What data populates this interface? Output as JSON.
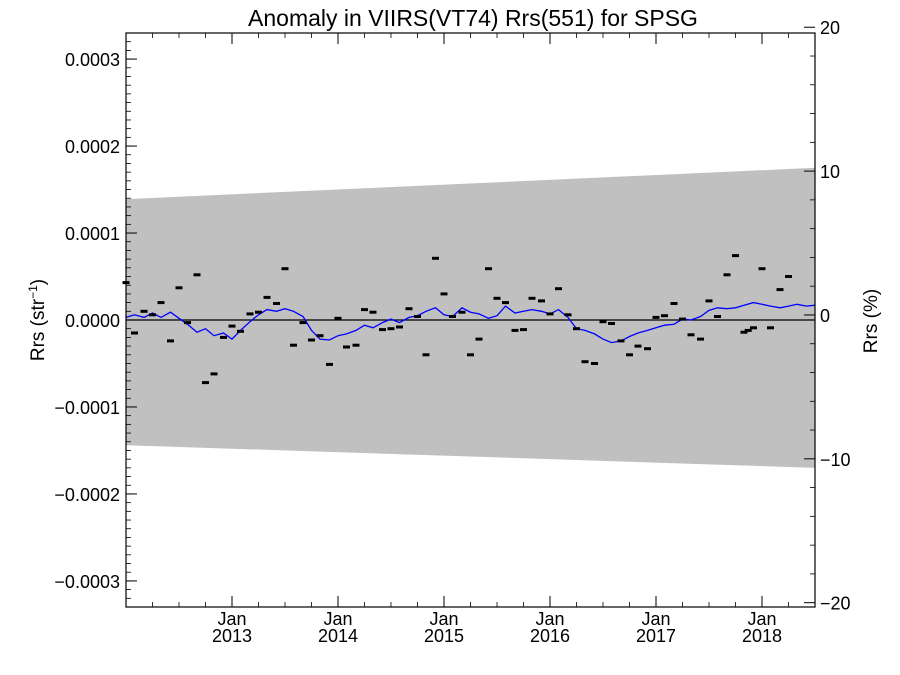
{
  "chart_data": {
    "type": "scatter",
    "title": "Anomaly in VIIRS(VT74) Rrs(551) for SPSG",
    "ylabel_left": "Rrs (str",
    "ylabel_left_sup": "−1",
    "ylabel_left_close": ")",
    "ylabel_right": "Rrs (%)",
    "xlim": [
      2012.0,
      2018.5
    ],
    "ylim_left": [
      -0.00033,
      0.00033
    ],
    "ylim_right": [
      -20.3,
      19.6
    ],
    "x_ticks": [
      {
        "x": 2013.0,
        "month": "Jan",
        "year": "2013"
      },
      {
        "x": 2014.0,
        "month": "Jan",
        "year": "2014"
      },
      {
        "x": 2015.0,
        "month": "Jan",
        "year": "2015"
      },
      {
        "x": 2016.0,
        "month": "Jan",
        "year": "2016"
      },
      {
        "x": 2017.0,
        "month": "Jan",
        "year": "2017"
      },
      {
        "x": 2018.0,
        "month": "Jan",
        "year": "2018"
      }
    ],
    "y_ticks_left": [
      {
        "value": 0.0003,
        "label": "0.0003"
      },
      {
        "value": 0.0002,
        "label": "0.0002"
      },
      {
        "value": 0.0001,
        "label": "0.0001"
      },
      {
        "value": 0.0,
        "label": "0.0000"
      },
      {
        "value": -0.0001,
        "label": "−0.0001"
      },
      {
        "value": -0.0002,
        "label": "−0.0002"
      },
      {
        "value": -0.0003,
        "label": "−0.0003"
      }
    ],
    "y_ticks_right": [
      {
        "value": 20,
        "label": "20"
      },
      {
        "value": 10,
        "label": "10"
      },
      {
        "value": 0,
        "label": "0"
      },
      {
        "value": -10,
        "label": "−10"
      },
      {
        "value": -20,
        "label": "−20"
      }
    ],
    "band": {
      "color": "#c0c0c0",
      "upper": [
        [
          2012.0,
          0.000139
        ],
        [
          2018.5,
          0.000175
        ]
      ],
      "lower": [
        [
          2012.0,
          -0.000144
        ],
        [
          2018.5,
          -0.00017
        ]
      ]
    },
    "zero_line_color": "#000000",
    "points_color": "#000000",
    "points": [
      [
        2012.0,
        4.3e-05
      ],
      [
        2012.08,
        -1.5e-05
      ],
      [
        2012.17,
        1e-05
      ],
      [
        2012.25,
        6e-06
      ],
      [
        2012.33,
        2e-05
      ],
      [
        2012.42,
        -2.4e-05
      ],
      [
        2012.5,
        3.7e-05
      ],
      [
        2012.58,
        -3e-06
      ],
      [
        2012.67,
        5.2e-05
      ],
      [
        2012.75,
        -7.2e-05
      ],
      [
        2012.83,
        -6.2e-05
      ],
      [
        2012.92,
        -2e-05
      ],
      [
        2013.0,
        -7e-06
      ],
      [
        2013.08,
        -1.3e-05
      ],
      [
        2013.17,
        7e-06
      ],
      [
        2013.25,
        9e-06
      ],
      [
        2013.33,
        2.6e-05
      ],
      [
        2013.42,
        1.9e-05
      ],
      [
        2013.5,
        5.9e-05
      ],
      [
        2013.58,
        -2.9e-05
      ],
      [
        2013.67,
        -3e-06
      ],
      [
        2013.75,
        -2.3e-05
      ],
      [
        2013.83,
        -1.8e-05
      ],
      [
        2013.92,
        -5.1e-05
      ],
      [
        2014.0,
        2e-06
      ],
      [
        2014.08,
        -3.1e-05
      ],
      [
        2014.17,
        -2.9e-05
      ],
      [
        2014.25,
        1.2e-05
      ],
      [
        2014.33,
        9e-06
      ],
      [
        2014.42,
        -1.1e-05
      ],
      [
        2014.5,
        -1e-05
      ],
      [
        2014.58,
        -8e-06
      ],
      [
        2014.67,
        1.3e-05
      ],
      [
        2014.75,
        4e-06
      ],
      [
        2014.83,
        -4e-05
      ],
      [
        2014.92,
        7.1e-05
      ],
      [
        2015.0,
        3e-05
      ],
      [
        2015.08,
        4e-06
      ],
      [
        2015.17,
        9e-06
      ],
      [
        2015.25,
        -4e-05
      ],
      [
        2015.33,
        -2.2e-05
      ],
      [
        2015.42,
        5.9e-05
      ],
      [
        2015.5,
        2.5e-05
      ],
      [
        2015.58,
        2e-05
      ],
      [
        2015.67,
        -1.2e-05
      ],
      [
        2015.75,
        -1.1e-05
      ],
      [
        2015.83,
        2.5e-05
      ],
      [
        2015.92,
        2.2e-05
      ],
      [
        2016.0,
        7e-06
      ],
      [
        2016.08,
        3.6e-05
      ],
      [
        2016.17,
        6e-06
      ],
      [
        2016.25,
        -1e-05
      ],
      [
        2016.33,
        -4.8e-05
      ],
      [
        2016.42,
        -5e-05
      ],
      [
        2016.5,
        -2e-06
      ],
      [
        2016.58,
        -4e-06
      ],
      [
        2016.67,
        -2.4e-05
      ],
      [
        2016.75,
        -4e-05
      ],
      [
        2016.83,
        -3e-05
      ],
      [
        2016.92,
        -3.3e-05
      ],
      [
        2017.0,
        3e-06
      ],
      [
        2017.08,
        5e-06
      ],
      [
        2017.17,
        1.9e-05
      ],
      [
        2017.25,
        1e-06
      ],
      [
        2017.33,
        -1.7e-05
      ],
      [
        2017.42,
        -2.2e-05
      ],
      [
        2017.5,
        2.2e-05
      ],
      [
        2017.58,
        4e-06
      ],
      [
        2017.67,
        5.2e-05
      ],
      [
        2017.75,
        7.4e-05
      ],
      [
        2017.83,
        -1.4e-05
      ],
      [
        2017.87,
        -1.2e-05
      ],
      [
        2017.92,
        -9e-06
      ],
      [
        2018.0,
        5.9e-05
      ],
      [
        2018.08,
        -9e-06
      ],
      [
        2018.17,
        3.5e-05
      ],
      [
        2018.25,
        5e-05
      ]
    ],
    "series": [
      {
        "color": "#0000ff",
        "x": [
          2012.0,
          2012.08,
          2012.17,
          2012.25,
          2012.33,
          2012.42,
          2012.5,
          2012.58,
          2012.67,
          2012.75,
          2012.83,
          2012.92,
          2013.0,
          2013.08,
          2013.17,
          2013.25,
          2013.33,
          2013.42,
          2013.5,
          2013.58,
          2013.67,
          2013.75,
          2013.83,
          2013.92,
          2014.0,
          2014.08,
          2014.17,
          2014.25,
          2014.33,
          2014.42,
          2014.5,
          2014.58,
          2014.67,
          2014.75,
          2014.83,
          2014.92,
          2015.0,
          2015.08,
          2015.17,
          2015.25,
          2015.33,
          2015.42,
          2015.5,
          2015.58,
          2015.67,
          2015.75,
          2015.83,
          2015.92,
          2016.0,
          2016.08,
          2016.17,
          2016.25,
          2016.33,
          2016.42,
          2016.5,
          2016.58,
          2016.67,
          2016.75,
          2016.83,
          2016.92,
          2017.0,
          2017.08,
          2017.17,
          2017.25,
          2017.33,
          2017.42,
          2017.5,
          2017.58,
          2017.67,
          2017.75,
          2017.83,
          2017.92,
          2018.0,
          2018.08,
          2018.17,
          2018.25,
          2018.33,
          2018.42,
          2018.5
        ],
        "y": [
          3e-06,
          6e-06,
          3e-06,
          8e-06,
          3e-06,
          9e-06,
          2e-06,
          -5e-06,
          -1.4e-05,
          -1e-05,
          -1.8e-05,
          -1.5e-05,
          -2.2e-05,
          -1.2e-05,
          -2e-06,
          6e-06,
          1.2e-05,
          1e-05,
          1.3e-05,
          1e-05,
          4e-06,
          -1.2e-05,
          -2.2e-05,
          -2.3e-05,
          -1.8e-05,
          -1.6e-05,
          -1.2e-05,
          -6e-06,
          -9e-06,
          -3e-06,
          1e-06,
          -3e-06,
          3e-06,
          5e-06,
          1e-05,
          1.4e-05,
          6e-06,
          4e-06,
          1.4e-05,
          9e-06,
          7e-06,
          2e-06,
          5e-06,
          1.6e-05,
          8e-06,
          1e-05,
          1.2e-05,
          1e-05,
          7e-06,
          1.2e-05,
          3e-06,
          -1e-05,
          -1.2e-05,
          -1.6e-05,
          -2.2e-05,
          -2.6e-05,
          -2.4e-05,
          -1.9e-05,
          -1.5e-05,
          -1.2e-05,
          -9e-06,
          -6e-06,
          -5e-06,
          1e-06,
          0.0,
          4e-06,
          1.1e-05,
          1.4e-05,
          1.3e-05,
          1.4e-05,
          1.7e-05,
          2e-05,
          1.8e-05,
          1.6e-05,
          1.4e-05,
          1.6e-05,
          1.8e-05,
          1.6e-05,
          1.7e-05
        ]
      }
    ]
  }
}
